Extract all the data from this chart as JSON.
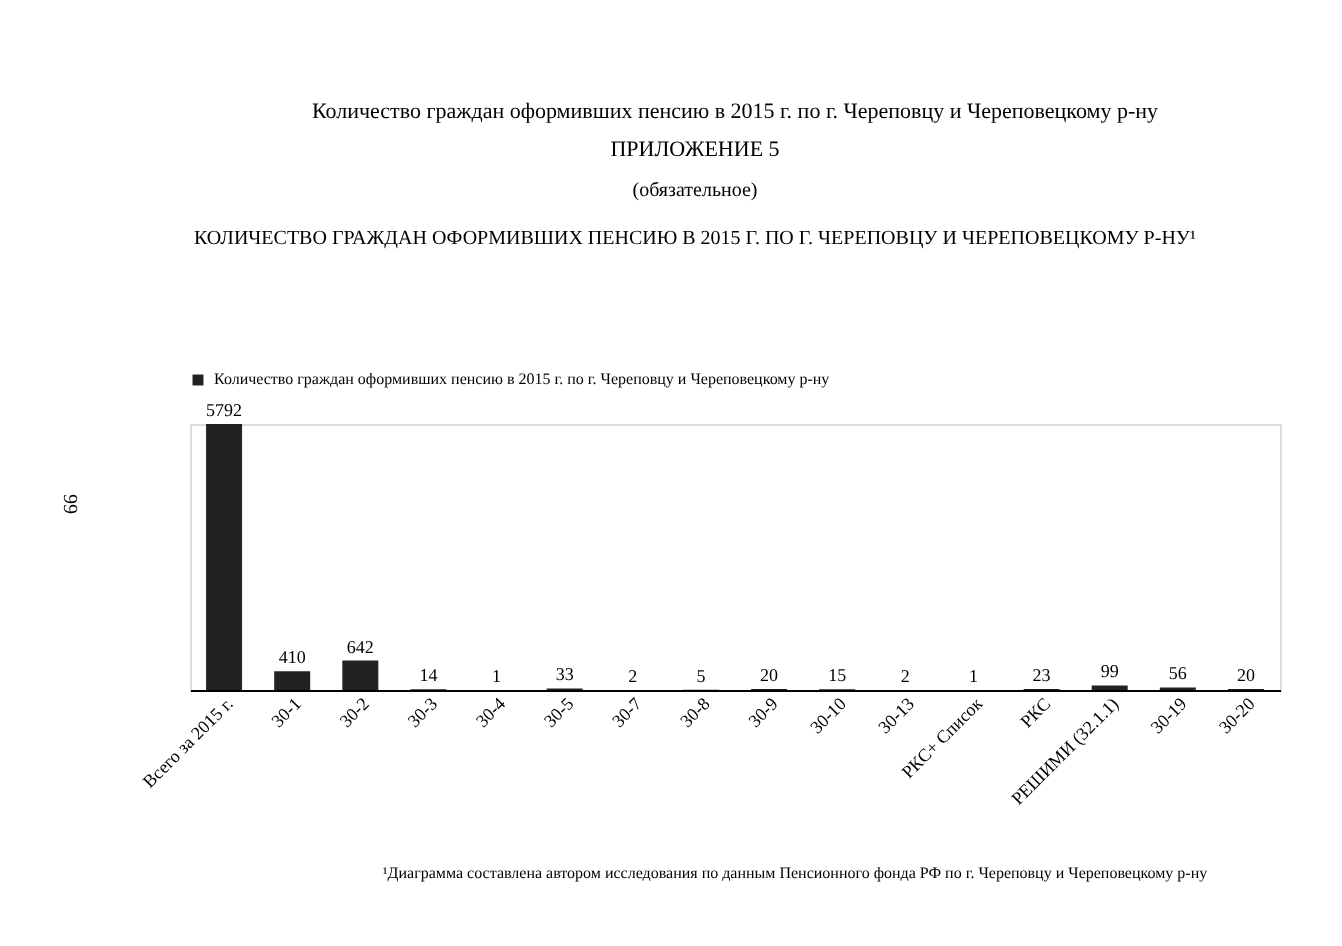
{
  "chart_data": {
    "type": "bar",
    "title": "Количество граждан оформивших пенсию в 2015 г. по г. Череповцу и Череповецкому р-ну",
    "categories": [
      "Всего за 2015 г.",
      "30-1",
      "30-2",
      "30-3",
      "30-4",
      "30-5",
      "30-7",
      "30-8",
      "30-9",
      "30-10",
      "30-13",
      "РКС+ Список",
      "РКС",
      "РЕШИМИ (32.1.1)",
      "30-19",
      "30-20"
    ],
    "series": [
      {
        "name": "Количество граждан оформивших пенсию в 2015 г. по г. Череповцу и Череповецкому р-ну",
        "color": "#222222",
        "values": [
          5792,
          410,
          642,
          14,
          1,
          33,
          2,
          5,
          20,
          15,
          2,
          1,
          23,
          99,
          56,
          20
        ]
      }
    ],
    "data_labels": true,
    "legend": "top",
    "tick_labels": "x",
    "annotations": [
      "ПРИЛОЖЕНИЕ 5",
      "(обязательное)",
      "КОЛИЧЕСТВО ГРАЖДАН ОФОРМИВШИХ ПЕНСИЮ В 2015 Г. ПО Г. ЧЕРЕПОВЦУ И ЧЕРЕПОВЕЦКОМУ Р-НУ¹",
      "99",
      "¹Диаграмма составлена автором исследования по данным Пенсионного фонда РФ по г. Череповцу и Череповецкому р-ну"
    ]
  }
}
